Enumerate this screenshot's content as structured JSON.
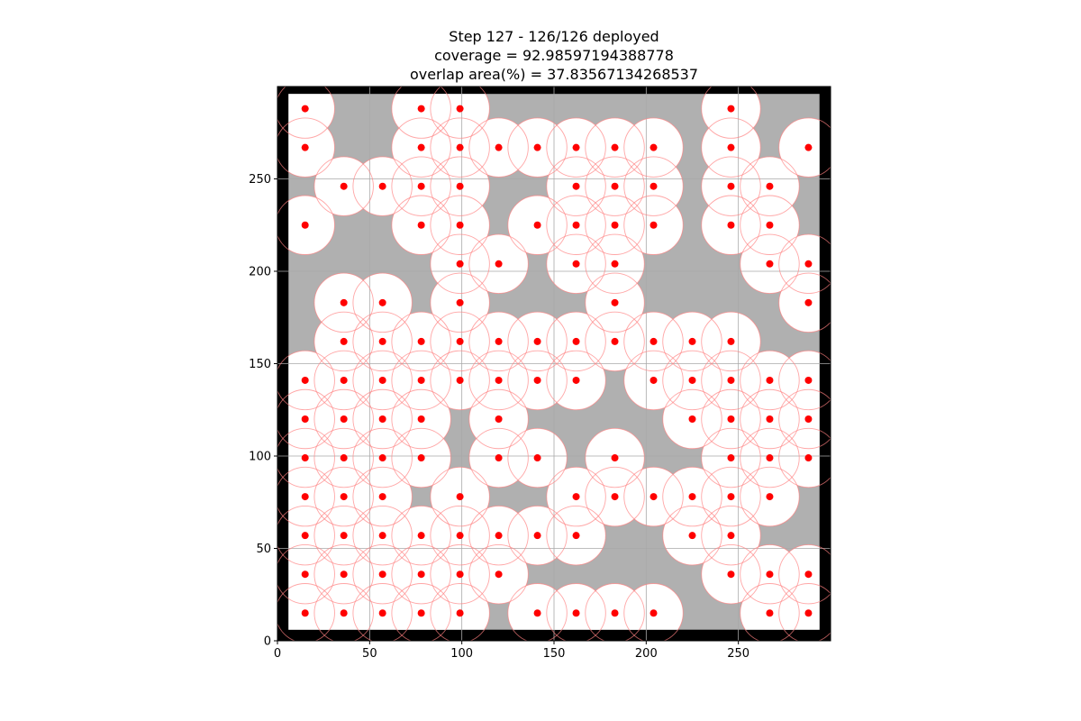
{
  "chart_data": {
    "type": "scatter",
    "title_lines": [
      "Step 127 - 126/126 deployed",
      "coverage = 92.98597194388778",
      "overlap area(%) =  37.83567134268537"
    ],
    "xlim": [
      0,
      300
    ],
    "ylim": [
      0,
      300
    ],
    "x_ticks": [
      0,
      50,
      100,
      150,
      200,
      250
    ],
    "y_ticks": [
      0,
      50,
      100,
      150,
      200,
      250
    ],
    "grid": true,
    "sensing_radius": 16,
    "colors": {
      "obstacle": "#000000",
      "covered": "#ffffff",
      "uncovered": "#b0b0b0",
      "sensor": "#ff0000",
      "sensing_circle": "#ff8080",
      "grid": "#a9a9a9"
    },
    "obstacle_rects": [
      [
        0,
        0,
        300,
        300
      ]
    ],
    "uncovered_rects": [
      [
        6,
        6,
        288,
        290
      ]
    ],
    "sensors": [
      [
        15,
        288
      ],
      [
        78,
        288
      ],
      [
        99,
        288
      ],
      [
        246,
        288
      ],
      [
        15,
        267
      ],
      [
        78,
        267
      ],
      [
        99,
        267
      ],
      [
        120,
        267
      ],
      [
        141,
        267
      ],
      [
        162,
        267
      ],
      [
        183,
        267
      ],
      [
        204,
        267
      ],
      [
        246,
        267
      ],
      [
        288,
        267
      ],
      [
        36,
        246
      ],
      [
        57,
        246
      ],
      [
        78,
        246
      ],
      [
        99,
        246
      ],
      [
        162,
        246
      ],
      [
        183,
        246
      ],
      [
        204,
        246
      ],
      [
        246,
        246
      ],
      [
        267,
        246
      ],
      [
        15,
        225
      ],
      [
        78,
        225
      ],
      [
        99,
        225
      ],
      [
        141,
        225
      ],
      [
        162,
        225
      ],
      [
        183,
        225
      ],
      [
        204,
        225
      ],
      [
        246,
        225
      ],
      [
        267,
        225
      ],
      [
        99,
        204
      ],
      [
        120,
        204
      ],
      [
        162,
        204
      ],
      [
        183,
        204
      ],
      [
        267,
        204
      ],
      [
        288,
        204
      ],
      [
        36,
        183
      ],
      [
        57,
        183
      ],
      [
        99,
        183
      ],
      [
        183,
        183
      ],
      [
        288,
        183
      ],
      [
        36,
        162
      ],
      [
        57,
        162
      ],
      [
        78,
        162
      ],
      [
        99,
        162
      ],
      [
        120,
        162
      ],
      [
        141,
        162
      ],
      [
        162,
        162
      ],
      [
        183,
        162
      ],
      [
        204,
        162
      ],
      [
        225,
        162
      ],
      [
        246,
        162
      ],
      [
        15,
        141
      ],
      [
        36,
        141
      ],
      [
        57,
        141
      ],
      [
        78,
        141
      ],
      [
        99,
        141
      ],
      [
        120,
        141
      ],
      [
        141,
        141
      ],
      [
        162,
        141
      ],
      [
        204,
        141
      ],
      [
        225,
        141
      ],
      [
        246,
        141
      ],
      [
        267,
        141
      ],
      [
        288,
        141
      ],
      [
        15,
        120
      ],
      [
        36,
        120
      ],
      [
        57,
        120
      ],
      [
        78,
        120
      ],
      [
        120,
        120
      ],
      [
        225,
        120
      ],
      [
        246,
        120
      ],
      [
        267,
        120
      ],
      [
        288,
        120
      ],
      [
        15,
        99
      ],
      [
        36,
        99
      ],
      [
        57,
        99
      ],
      [
        78,
        99
      ],
      [
        120,
        99
      ],
      [
        141,
        99
      ],
      [
        183,
        99
      ],
      [
        246,
        99
      ],
      [
        267,
        99
      ],
      [
        288,
        99
      ],
      [
        15,
        78
      ],
      [
        36,
        78
      ],
      [
        57,
        78
      ],
      [
        99,
        78
      ],
      [
        162,
        78
      ],
      [
        183,
        78
      ],
      [
        204,
        78
      ],
      [
        225,
        78
      ],
      [
        246,
        78
      ],
      [
        267,
        78
      ],
      [
        15,
        57
      ],
      [
        36,
        57
      ],
      [
        57,
        57
      ],
      [
        78,
        57
      ],
      [
        99,
        57
      ],
      [
        120,
        57
      ],
      [
        141,
        57
      ],
      [
        162,
        57
      ],
      [
        225,
        57
      ],
      [
        246,
        57
      ],
      [
        15,
        36
      ],
      [
        36,
        36
      ],
      [
        57,
        36
      ],
      [
        78,
        36
      ],
      [
        99,
        36
      ],
      [
        120,
        36
      ],
      [
        246,
        36
      ],
      [
        267,
        36
      ],
      [
        288,
        36
      ],
      [
        15,
        15
      ],
      [
        36,
        15
      ],
      [
        57,
        15
      ],
      [
        78,
        15
      ],
      [
        99,
        15
      ],
      [
        141,
        15
      ],
      [
        162,
        15
      ],
      [
        183,
        15
      ],
      [
        204,
        15
      ],
      [
        267,
        15
      ],
      [
        288,
        15
      ]
    ]
  }
}
